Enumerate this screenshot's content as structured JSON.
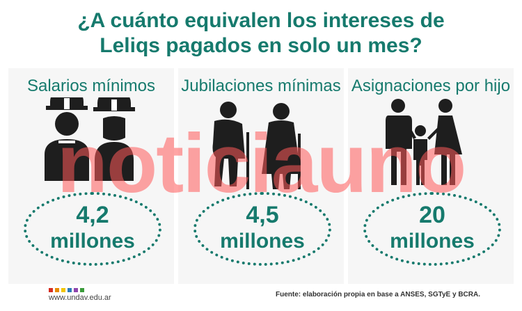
{
  "title_line1": "¿A cuánto equivalen los intereses de",
  "title_line2": "Leliqs pagados en solo un mes?",
  "columns": [
    {
      "label": "Salarios mínimos",
      "number": "4,2",
      "unit": "millones"
    },
    {
      "label": "Jubilaciones mínimas",
      "number": "4,5",
      "unit": "millones"
    },
    {
      "label": "Asignaciones por hijo",
      "number": "20",
      "unit": "millones"
    }
  ],
  "watermark": "noticiauno",
  "footer": {
    "url": "www.undav.edu.ar",
    "source": "Fuente: elaboración propia en base a ANSES, SGTyE y BCRA."
  },
  "colors": {
    "accent": "#167a6d",
    "logo_dots": [
      "#d62d20",
      "#e68a00",
      "#f2c500",
      "#2b7bb9",
      "#8e44ad",
      "#3a9b3a"
    ]
  }
}
